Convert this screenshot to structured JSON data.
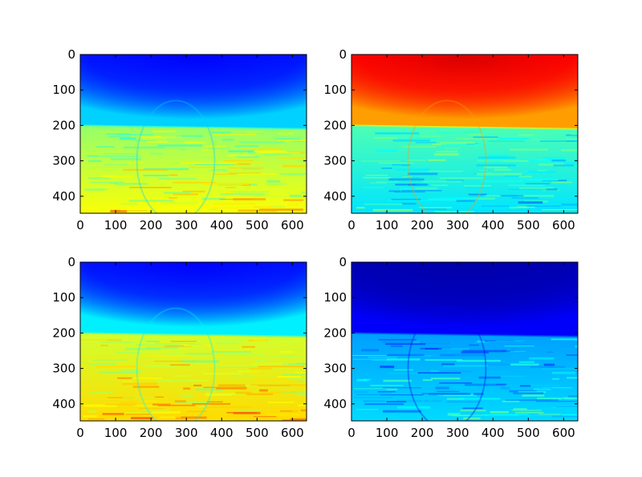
{
  "chart_data": [
    {
      "type": "heatmap",
      "colormap": "jet",
      "variant": "original",
      "xlim": [
        0,
        640
      ],
      "ylim": [
        448,
        0
      ],
      "xticks": [
        0,
        100,
        200,
        300,
        400,
        500,
        600
      ],
      "yticks": [
        0,
        100,
        200,
        300,
        400
      ],
      "horizon_y": [
        200,
        210
      ],
      "levels": {
        "sky_top": 0.14,
        "sky_center": 0.12,
        "sky_edge": 0.33,
        "water": 0.52,
        "water_bottom": 0.62
      }
    },
    {
      "type": "heatmap",
      "colormap": "jet",
      "variant": "inverted-sky",
      "xlim": [
        0,
        640
      ],
      "ylim": [
        448,
        0
      ],
      "xticks": [
        0,
        100,
        200,
        300,
        400,
        500,
        600
      ],
      "yticks": [
        0,
        100,
        200,
        300,
        400
      ],
      "horizon_y": [
        200,
        210
      ],
      "levels": {
        "sky_top": 0.88,
        "sky_center": 0.92,
        "sky_edge": 0.72,
        "water": 0.45,
        "water_bottom": 0.35
      }
    },
    {
      "type": "heatmap",
      "colormap": "jet",
      "variant": "brightened",
      "xlim": [
        0,
        640
      ],
      "ylim": [
        448,
        0
      ],
      "xticks": [
        0,
        100,
        200,
        300,
        400,
        500,
        600
      ],
      "yticks": [
        0,
        100,
        200,
        300,
        400
      ],
      "horizon_y": [
        200,
        210
      ],
      "levels": {
        "sky_top": 0.14,
        "sky_center": 0.12,
        "sky_edge": 0.36,
        "water": 0.58,
        "water_bottom": 0.66
      }
    },
    {
      "type": "heatmap",
      "colormap": "jet",
      "variant": "darkened",
      "xlim": [
        0,
        640
      ],
      "ylim": [
        448,
        0
      ],
      "xticks": [
        0,
        100,
        200,
        300,
        400,
        500,
        600
      ],
      "yticks": [
        0,
        100,
        200,
        300,
        400
      ],
      "horizon_y": [
        200,
        210
      ],
      "levels": {
        "sky_top": 0.05,
        "sky_center": 0.04,
        "sky_edge": 0.12,
        "water": 0.28,
        "water_bottom": 0.34
      }
    }
  ]
}
